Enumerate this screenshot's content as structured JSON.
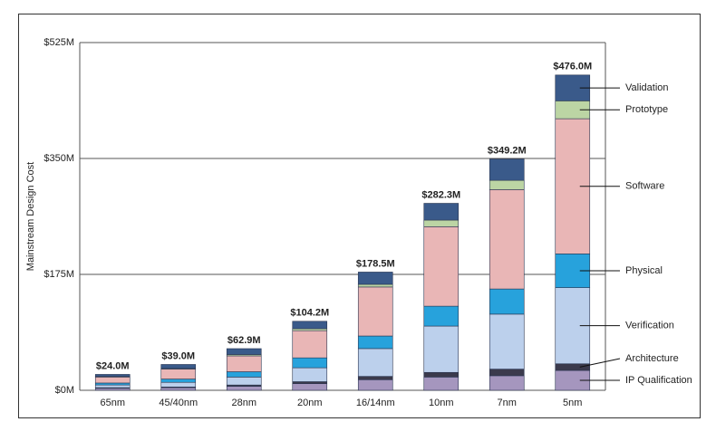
{
  "chart_data": {
    "type": "stacked_bar",
    "y_axis_label": "Mainstream Design Cost",
    "categories": [
      "65nm",
      "45/40nm",
      "28nm",
      "20nm",
      "16/14nm",
      "10nm",
      "7nm",
      "5nm"
    ],
    "series": [
      {
        "name": "IP Qualification",
        "color": "#a596be",
        "values": [
          3,
          4,
          6,
          10,
          16,
          20,
          22,
          30
        ]
      },
      {
        "name": "Architecture",
        "color": "#3b3a4c",
        "values": [
          1,
          1,
          2,
          3,
          5,
          7,
          10,
          10
        ]
      },
      {
        "name": "Verification",
        "color": "#bcd0ec",
        "values": [
          4,
          7,
          12,
          21,
          42,
          70,
          83,
          115
        ]
      },
      {
        "name": "Physical",
        "color": "#27a2dc",
        "values": [
          3,
          5,
          8,
          15,
          19,
          30,
          38,
          51
        ]
      },
      {
        "name": "Software",
        "color": "#e9b6b6",
        "values": [
          9,
          15,
          24,
          41,
          74,
          120,
          150,
          204
        ]
      },
      {
        "name": "Prototype",
        "color": "#bcd5a4",
        "values": [
          1,
          1,
          2,
          3,
          4,
          10,
          14,
          27
        ]
      },
      {
        "name": "Validation",
        "color": "#3a5a8a",
        "values": [
          3,
          6,
          8.9,
          11.2,
          18.5,
          25.3,
          32.2,
          39
        ]
      }
    ],
    "totals": [
      24.0,
      39.0,
      62.9,
      104.2,
      178.5,
      282.3,
      349.2,
      476.0
    ],
    "total_value_labels": [
      "$24.0M",
      "$39.0M",
      "$62.9M",
      "$104.2M",
      "$178.5M",
      "$282.3M",
      "$349.2M",
      "$476.0M"
    ],
    "ylim": [
      0,
      525
    ],
    "yticks": [
      {
        "value": 0,
        "label": "$0M"
      },
      {
        "value": 175,
        "label": "$175M"
      },
      {
        "value": 350,
        "label": "$350M"
      },
      {
        "value": 525,
        "label": "$525M"
      }
    ],
    "grid": true
  }
}
